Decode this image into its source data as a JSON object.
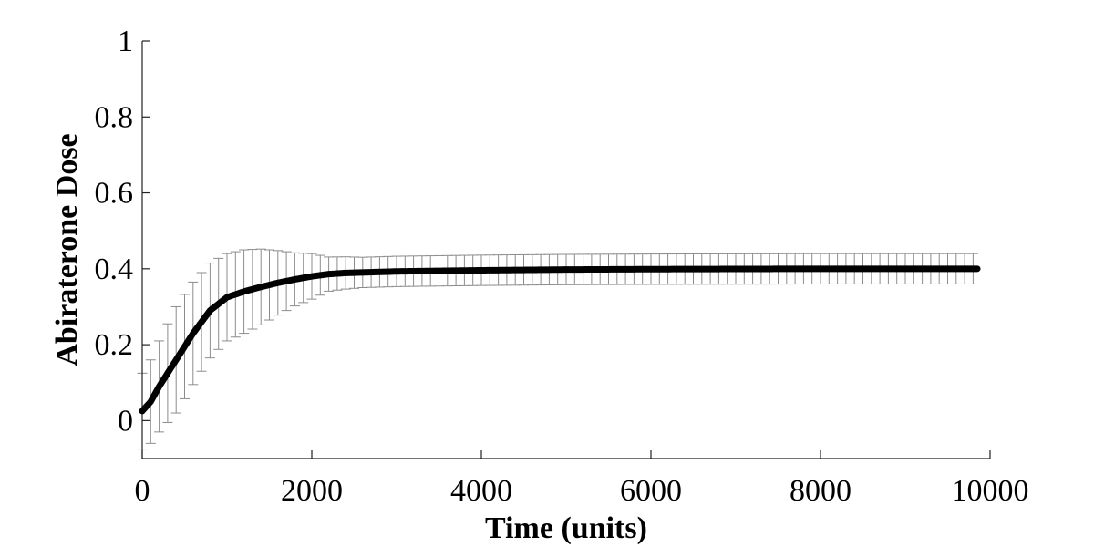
{
  "chart_data": {
    "type": "line",
    "title": "",
    "xlabel": "Time (units)",
    "ylabel": "Abiraterone Dose",
    "xlim": [
      0,
      10000
    ],
    "ylim": [
      -0.1,
      1
    ],
    "xticks": [
      0,
      2000,
      4000,
      6000,
      8000,
      10000
    ],
    "xtick_labels": [
      "0",
      "2000",
      "4000",
      "6000",
      "8000",
      "10000"
    ],
    "yticks": [
      0,
      0.2,
      0.4,
      0.6,
      0.8,
      1
    ],
    "ytick_labels": [
      "0",
      "0.2",
      "0.4",
      "0.6",
      "0.8",
      "1"
    ],
    "grid": false,
    "legend": "none",
    "series_color": "#000000",
    "errorbar_color": "#8c8c8c",
    "series": [
      {
        "mean_points": [
          [
            0,
            0.025
          ],
          [
            100,
            0.05
          ],
          [
            200,
            0.09
          ],
          [
            400,
            0.16
          ],
          [
            600,
            0.23
          ],
          [
            800,
            0.29
          ],
          [
            1000,
            0.325
          ],
          [
            1200,
            0.34
          ],
          [
            1400,
            0.352
          ],
          [
            1600,
            0.363
          ],
          [
            1800,
            0.372
          ],
          [
            2000,
            0.38
          ],
          [
            2200,
            0.386
          ],
          [
            2400,
            0.389
          ],
          [
            3000,
            0.393
          ],
          [
            4000,
            0.396
          ],
          [
            5000,
            0.398
          ],
          [
            6000,
            0.399
          ],
          [
            8000,
            0.4
          ],
          [
            9850,
            0.4
          ]
        ],
        "error_band": [
          [
            0,
            0.1
          ],
          [
            200,
            0.12
          ],
          [
            400,
            0.14
          ],
          [
            600,
            0.135
          ],
          [
            800,
            0.125
          ],
          [
            1000,
            0.115
          ],
          [
            1200,
            0.11
          ],
          [
            1400,
            0.1
          ],
          [
            1600,
            0.085
          ],
          [
            1800,
            0.07
          ],
          [
            2000,
            0.06
          ],
          [
            2200,
            0.045
          ],
          [
            2600,
            0.04
          ],
          [
            4000,
            0.04
          ],
          [
            9850,
            0.04
          ]
        ],
        "errorbar_spacing": 100,
        "x_end": 9850
      }
    ]
  }
}
